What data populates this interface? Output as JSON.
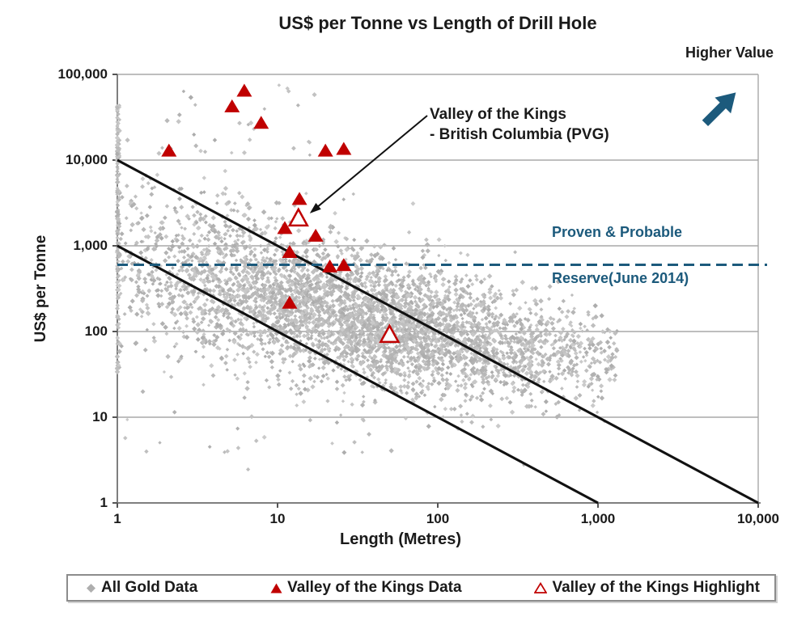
{
  "title": "US$ per Tonne vs Length of Drill Hole",
  "higher_value_label": "Higher Value",
  "annotation": {
    "line1": "Valley of the Kings",
    "line2": "- British Columbia (PVG)"
  },
  "reserve_label": {
    "line1": "Proven & Probable",
    "line2": "Reserve(June 2014)"
  },
  "axes": {
    "x": {
      "label": "Length (Metres)",
      "scale": "log",
      "ticks": [
        "1",
        "10",
        "100",
        "1,000",
        "10,000"
      ],
      "tick_values": [
        1,
        10,
        100,
        1000,
        10000
      ]
    },
    "y": {
      "label": "US$ per Tonne",
      "scale": "log",
      "ticks": [
        "1",
        "10",
        "100",
        "1,000",
        "10,000",
        "100,000"
      ],
      "tick_values": [
        1,
        10,
        100,
        1000,
        10000,
        100000
      ]
    }
  },
  "legend": {
    "items": [
      {
        "label": "All Gold Data",
        "marker": "gray-diamond"
      },
      {
        "label": "Valley of the Kings Data",
        "marker": "red-filled-triangle"
      },
      {
        "label": "Valley of the Kings Highlight",
        "marker": "red-open-triangle"
      }
    ]
  },
  "colors": {
    "accent_blue": "#1c5a7c",
    "data_red": "#c00000",
    "cloud_gray_min": 172,
    "cloud_gray_span": 32,
    "grid_gray": "#a8a8a8",
    "axis_gray": "#7f7f7f",
    "line_black": "#111111"
  },
  "chart_data": {
    "type": "scatter",
    "title": "US$ per Tonne vs Length of Drill Hole",
    "xlabel": "Length (Metres)",
    "ylabel": "US$ per Tonne",
    "x_scale": "log",
    "y_scale": "log",
    "xlim": [
      1,
      10000
    ],
    "ylim": [
      1,
      100000
    ],
    "grid": "horizontal-decades",
    "legend_position": "bottom",
    "series": [
      {
        "name": "All Gold Data",
        "marker": "diamond",
        "note": "dense cloud of thousands of drill-hole points; approximated by a seeded generator in log-log space",
        "generator": {
          "seed": 7,
          "n_core": 4300,
          "logx_mean": 1.52,
          "logx_sd": 0.8,
          "logx_range": [
            0,
            3.12
          ],
          "logy_center_coeffs": [
            2.95,
            -0.62,
            0.065
          ],
          "logy_sd_coeffs": [
            0.52,
            -0.08
          ],
          "logy_range": [
            0.2,
            4.93
          ],
          "column_at_x1": 150,
          "column_logy_range": [
            1.5,
            4.65
          ],
          "high_outliers": 26,
          "high_outlier_logx_range": [
            0,
            1.25
          ],
          "high_outlier_logy_range": [
            4.05,
            4.9
          ],
          "low_outliers": 18,
          "low_outlier_logx_range": [
            0,
            1.6
          ],
          "low_outlier_logy_range": [
            0.55,
            1.1
          ]
        }
      },
      {
        "name": "Valley of the Kings Data",
        "marker": "filled-triangle",
        "color": "#c00000",
        "points": [
          [
            2.1,
            12800
          ],
          [
            5.2,
            42000
          ],
          [
            6.2,
            64000
          ],
          [
            7.9,
            27000
          ],
          [
            19.9,
            12800
          ],
          [
            25.9,
            13400
          ],
          [
            13.7,
            3500
          ],
          [
            11.1,
            1600
          ],
          [
            17.3,
            1300
          ],
          [
            11.9,
            840
          ],
          [
            21.2,
            570
          ],
          [
            25.9,
            590
          ],
          [
            11.9,
            215
          ]
        ]
      },
      {
        "name": "Valley of the Kings Highlight",
        "marker": "open-triangle",
        "color": "#c00000",
        "points": [
          [
            13.5,
            2100
          ],
          [
            50,
            92
          ]
        ]
      }
    ],
    "reference_lines": [
      {
        "name": "upper-envelope",
        "style": "solid",
        "color": "#111111",
        "from": [
          1,
          10000
        ],
        "to": [
          10000,
          1
        ]
      },
      {
        "name": "lower-envelope",
        "style": "solid",
        "color": "#111111",
        "from": [
          1,
          1000
        ],
        "to": [
          1000,
          1
        ]
      },
      {
        "name": "proven-probable-reserve",
        "style": "dashed",
        "color": "#1c5a7c",
        "y": 600,
        "label": "Proven & Probable Reserve(June 2014)"
      }
    ],
    "annotations": [
      {
        "text": "Valley of the Kings - British Columbia (PVG)",
        "points_to": [
          13.5,
          2100
        ]
      },
      {
        "text": "Higher Value",
        "type": "direction-arrow-up-right"
      }
    ]
  }
}
